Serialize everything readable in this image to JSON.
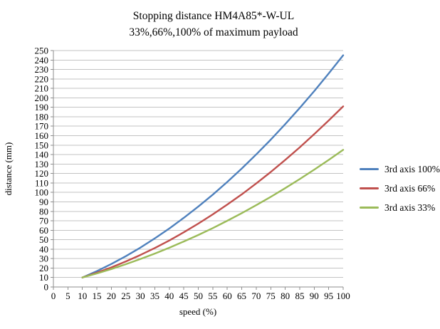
{
  "chart_data": {
    "type": "line",
    "title": "Stopping distance HM4A85*-W-UL",
    "subtitle": "33%,66%,100% of maximum payload",
    "xlabel": "speed (%)",
    "ylabel": "distance (mm)",
    "xlim": [
      0,
      100
    ],
    "ylim": [
      0,
      250
    ],
    "grid": "horizontal",
    "legend_position": "right",
    "x_ticks": [
      0,
      5,
      10,
      15,
      20,
      25,
      30,
      35,
      40,
      45,
      50,
      55,
      60,
      65,
      70,
      75,
      80,
      85,
      90,
      95,
      100
    ],
    "y_ticks": [
      0,
      10,
      20,
      30,
      40,
      50,
      60,
      70,
      80,
      90,
      100,
      110,
      120,
      130,
      140,
      150,
      160,
      170,
      180,
      190,
      200,
      210,
      220,
      230,
      240,
      250
    ],
    "x": [
      10,
      15,
      20,
      25,
      30,
      35,
      40,
      45,
      50,
      55,
      60,
      65,
      70,
      75,
      80,
      85,
      90,
      95,
      100
    ],
    "series": [
      {
        "name": "3rd axis 100%",
        "color": "#4F81BD",
        "values": [
          10,
          16.8,
          24.3,
          32.6,
          41.6,
          51.4,
          61.8,
          73.1,
          85,
          97.7,
          111.1,
          125.3,
          140.2,
          155.8,
          172.2,
          189.2,
          207.1,
          225.7,
          245
        ]
      },
      {
        "name": "3rd axis 66%",
        "color": "#C0504D",
        "values": [
          10,
          15.1,
          20.7,
          27,
          33.8,
          41.2,
          49.2,
          57.8,
          67,
          76.8,
          87.1,
          98,
          109.5,
          121.6,
          134.3,
          147.6,
          161.6,
          176,
          191
        ]
      },
      {
        "name": "3rd axis 33%",
        "color": "#9BBB59",
        "values": [
          10,
          14.3,
          19,
          24.1,
          29.5,
          35.3,
          41.5,
          48.1,
          55,
          62.3,
          70,
          78.1,
          86.5,
          95.3,
          104.5,
          114.1,
          124,
          134.3,
          145
        ]
      }
    ],
    "colors": {
      "gridline": "#C3C3C3",
      "axis": "#8E8E8E",
      "text": "#000000",
      "background": "#FFFFFF"
    }
  }
}
